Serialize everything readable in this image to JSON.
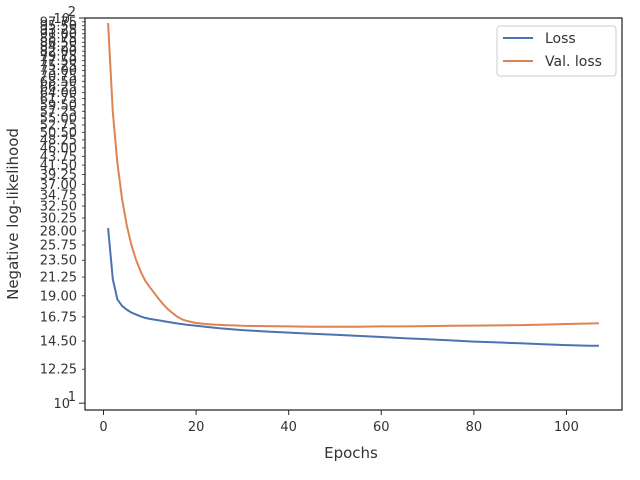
{
  "chart_data": {
    "type": "line",
    "xlabel": "Epochs",
    "ylabel": "Negative log-likelihood",
    "xlim": [
      -4,
      112
    ],
    "ylim": [
      9.6,
      100
    ],
    "yscale": "log",
    "grid": false,
    "legend_position": "top-right",
    "x_ticks": [
      0,
      20,
      40,
      60,
      80,
      100
    ],
    "x_tick_labels": [
      "0",
      "20",
      "40",
      "60",
      "80",
      "100"
    ],
    "y_major_ticks": [
      10,
      100
    ],
    "y_major_tick_labels": [
      "10",
      "10"
    ],
    "y_major_tick_exponents": [
      "1",
      "2"
    ],
    "y_minor_ticks": [
      12.25,
      14.5,
      16.75,
      19.0,
      21.25,
      23.5,
      25.75,
      28.0,
      30.25,
      32.5,
      34.75,
      37.0,
      39.25,
      41.5,
      43.75,
      46.0,
      48.25,
      50.5,
      52.75,
      55.0,
      57.25,
      59.5,
      61.75,
      64.0,
      66.25,
      68.5,
      70.75,
      73.0,
      75.25,
      77.5,
      79.75,
      82.0,
      84.25,
      86.5,
      88.75,
      91.0,
      93.25,
      95.5,
      97.75
    ],
    "y_minor_tick_labels": [
      "12.25",
      "14.50",
      "16.75",
      "19.00",
      "21.25",
      "23.50",
      "25.75",
      "28.00",
      "30.25",
      "32.50",
      "34.75",
      "37.00",
      "39.25",
      "41.50",
      "43.75",
      "46.00",
      "48.25",
      "50.50",
      "52.75",
      "55.00",
      "57.25",
      "59.50",
      "61.75",
      "64.00",
      "66.25",
      "68.50",
      "70.75",
      "73.00",
      "75.25",
      "77.50",
      "79.75",
      "82.00",
      "84.25",
      "86.50",
      "88.75",
      "91.00",
      "93.25",
      "95.50",
      "97.75"
    ],
    "series": [
      {
        "name": "Loss",
        "color": "#4c72b0",
        "x": [
          1,
          2,
          3,
          4,
          5,
          6,
          7,
          8,
          9,
          10,
          12,
          14,
          16,
          18,
          20,
          25,
          30,
          35,
          40,
          45,
          50,
          55,
          60,
          65,
          70,
          75,
          80,
          85,
          90,
          95,
          100,
          105,
          107
        ],
        "y": [
          28.5,
          21.0,
          18.6,
          17.9,
          17.5,
          17.2,
          17.0,
          16.8,
          16.65,
          16.55,
          16.4,
          16.25,
          16.1,
          15.98,
          15.88,
          15.65,
          15.48,
          15.35,
          15.25,
          15.15,
          15.05,
          14.95,
          14.85,
          14.75,
          14.65,
          14.55,
          14.45,
          14.38,
          14.3,
          14.22,
          14.15,
          14.1,
          14.1
        ]
      },
      {
        "name": "Val. loss",
        "color": "#dd8452",
        "x": [
          1,
          2,
          3,
          4,
          5,
          6,
          7,
          8,
          9,
          10,
          11,
          12,
          13,
          14,
          15,
          16,
          17,
          18,
          19,
          20,
          22,
          24,
          26,
          28,
          30,
          35,
          40,
          45,
          50,
          55,
          60,
          65,
          70,
          75,
          80,
          85,
          90,
          95,
          100,
          105,
          107
        ],
        "y": [
          97.0,
          57.0,
          42.0,
          34.0,
          29.0,
          25.8,
          23.6,
          22.0,
          20.8,
          20.0,
          19.3,
          18.6,
          18.0,
          17.5,
          17.1,
          16.75,
          16.5,
          16.35,
          16.25,
          16.15,
          16.05,
          16.0,
          15.95,
          15.92,
          15.88,
          15.85,
          15.82,
          15.8,
          15.8,
          15.8,
          15.82,
          15.82,
          15.85,
          15.88,
          15.9,
          15.92,
          15.95,
          16.0,
          16.05,
          16.1,
          16.12
        ]
      }
    ]
  }
}
